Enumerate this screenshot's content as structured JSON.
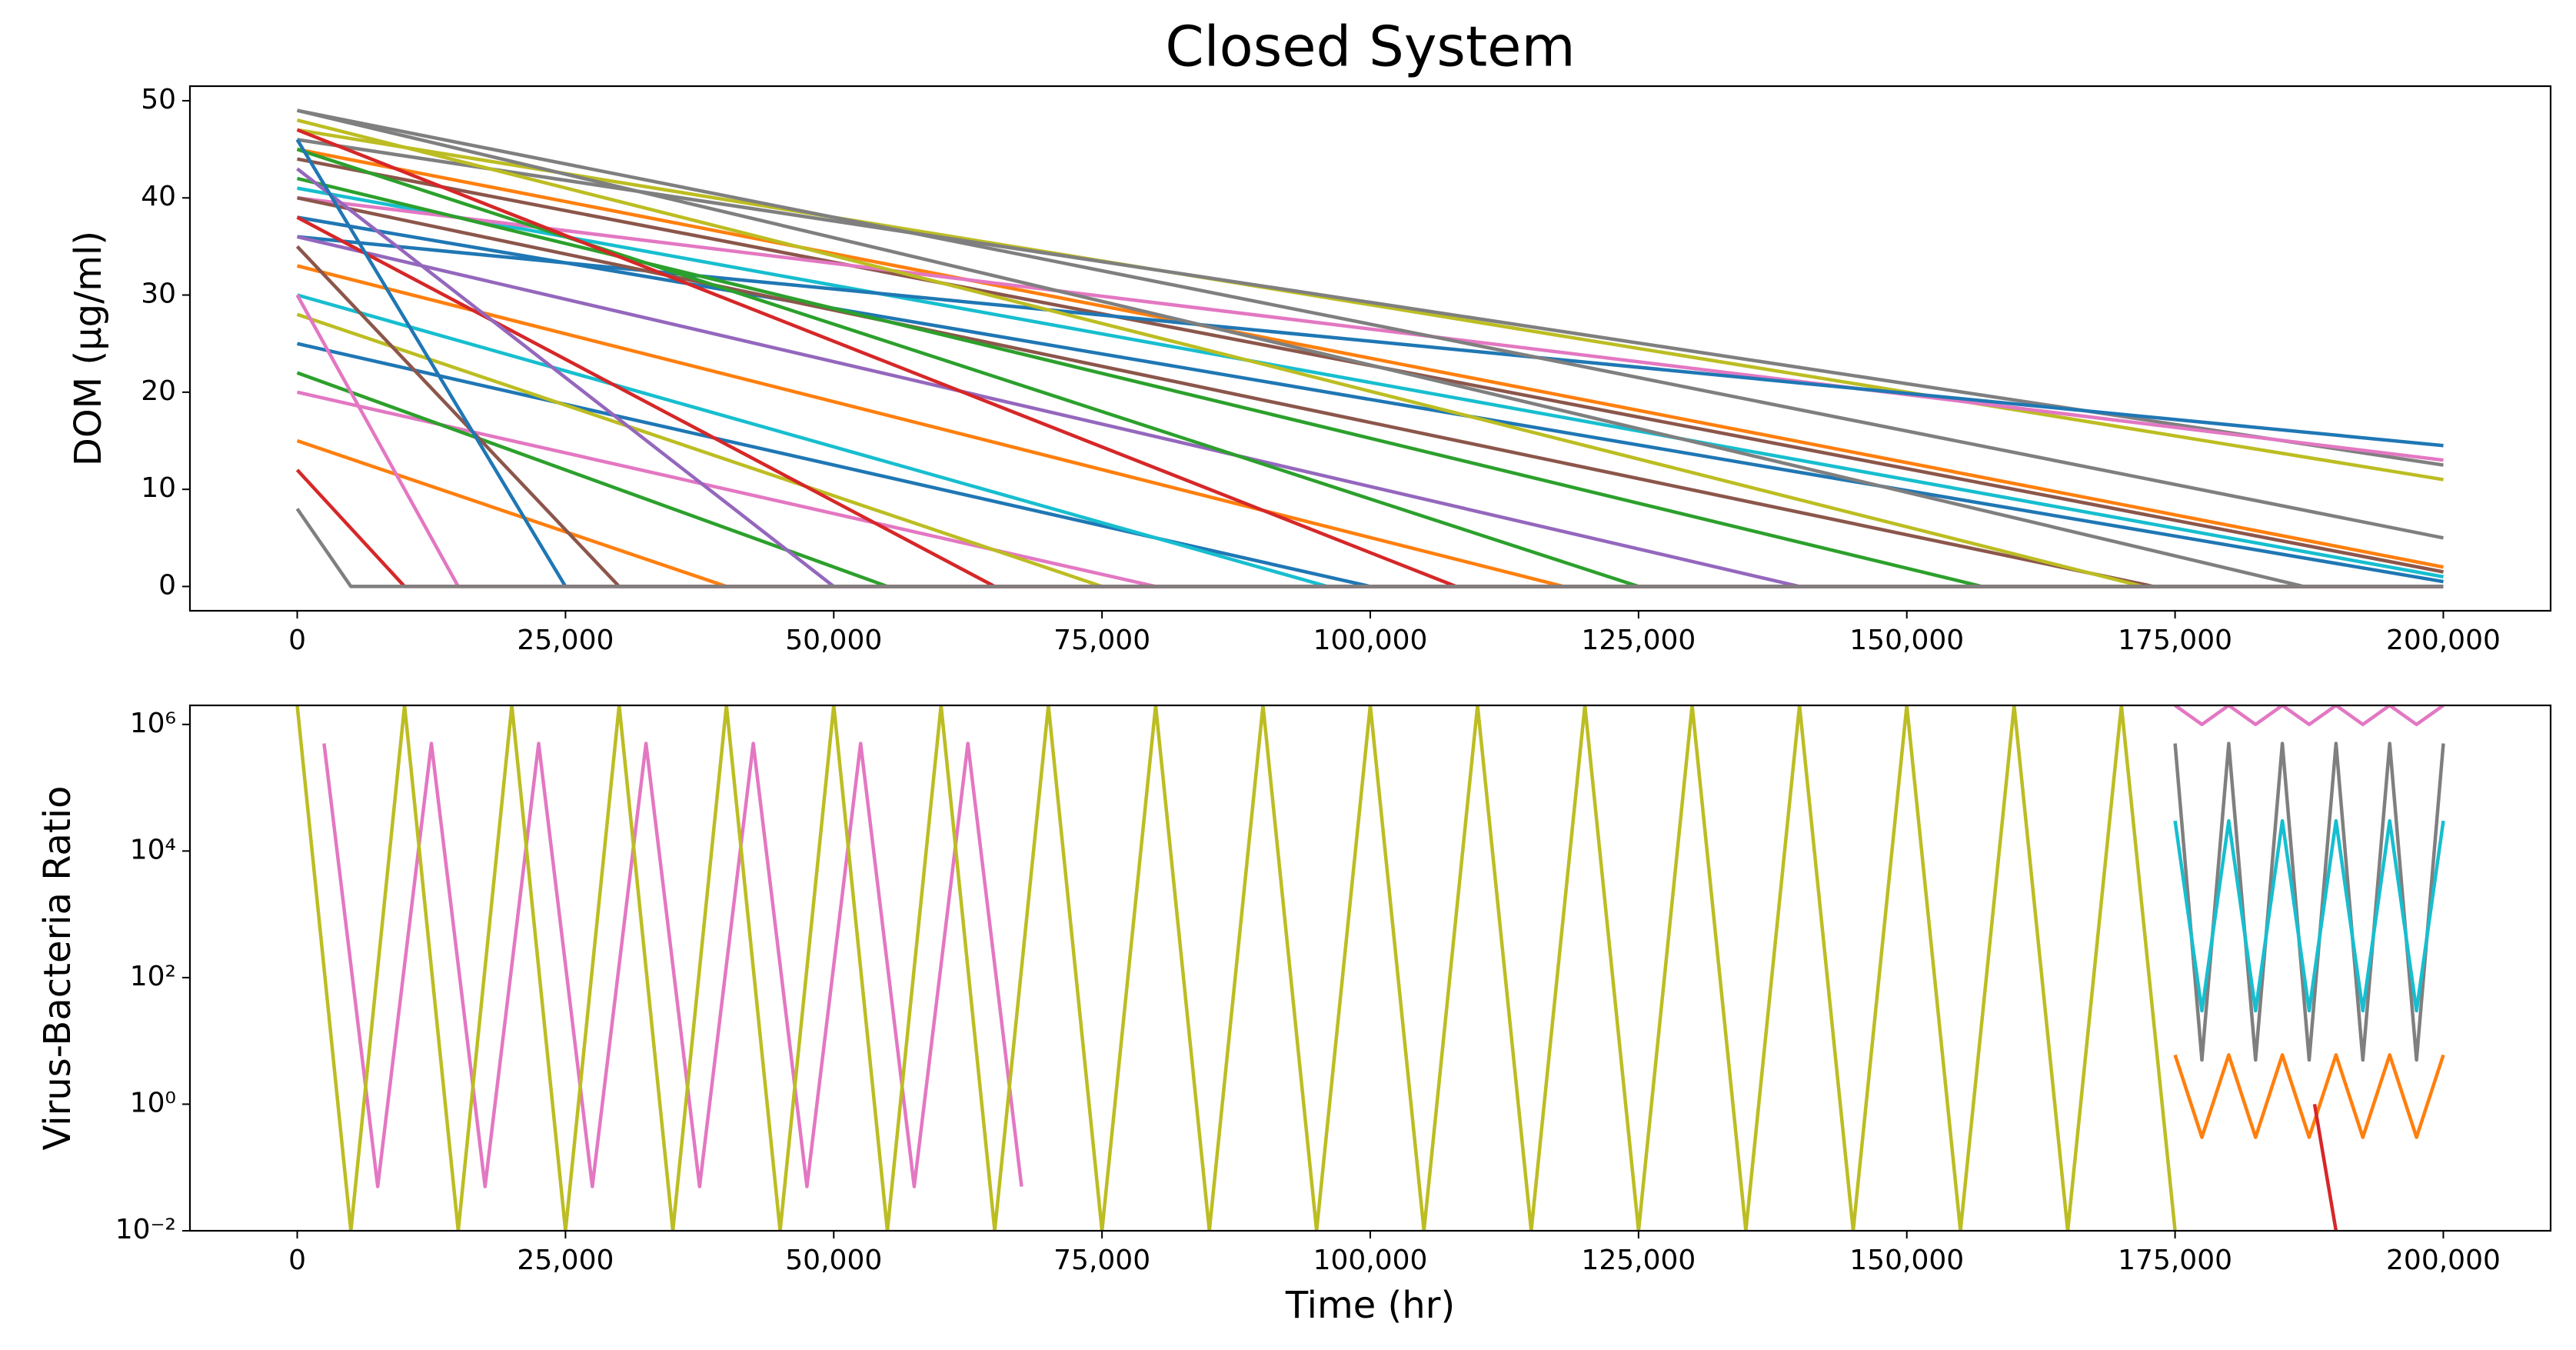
{
  "chart_data": [
    {
      "type": "line",
      "title": "Closed System",
      "ylabel": "DOM (μg/ml)",
      "xlim": [
        -10000,
        210000
      ],
      "ylim": [
        -2.5,
        51.5
      ],
      "xticks": [
        0,
        {
          "value": 25000,
          "label": "25,000"
        },
        {
          "value": 50000,
          "label": "50,000"
        },
        {
          "value": 75000,
          "label": "75,000"
        },
        {
          "value": 100000,
          "label": "100,000"
        },
        {
          "value": 125000,
          "label": "125,000"
        },
        {
          "value": 150000,
          "label": "150,000"
        },
        {
          "value": 175000,
          "label": "175,000"
        },
        {
          "value": 200000,
          "label": "200,000"
        }
      ],
      "yticks": [
        0,
        10,
        20,
        30,
        40,
        50
      ],
      "series": [
        {
          "color": "#1f77b4",
          "x": [
            0,
            200000
          ],
          "values": [
            38,
            0.5
          ]
        },
        {
          "color": "#17becf",
          "x": [
            0,
            200000
          ],
          "values": [
            41,
            1
          ]
        },
        {
          "color": "#8c564b",
          "x": [
            0,
            200000
          ],
          "values": [
            44,
            1.5
          ]
        },
        {
          "color": "#ff7f0e",
          "x": [
            0,
            200000
          ],
          "values": [
            45,
            2
          ]
        },
        {
          "color": "#bcbd22",
          "x": [
            0,
            200000
          ],
          "values": [
            47,
            11
          ]
        },
        {
          "color": "#7f7f7f",
          "x": [
            0,
            200000
          ],
          "values": [
            46,
            12.5
          ]
        },
        {
          "color": "#e377c2",
          "x": [
            0,
            200000
          ],
          "values": [
            40,
            13
          ]
        },
        {
          "color": "#1f77b4",
          "x": [
            0,
            200000
          ],
          "values": [
            36,
            14.5
          ]
        },
        {
          "color": "#7f7f7f",
          "x": [
            0,
            200000
          ],
          "values": [
            49,
            5
          ]
        },
        {
          "color": "#7f7f7f",
          "x": [
            0,
            187000,
            200000
          ],
          "values": [
            49,
            0,
            0
          ]
        },
        {
          "color": "#8c564b",
          "x": [
            0,
            173000,
            200000
          ],
          "values": [
            40,
            0,
            0
          ]
        },
        {
          "color": "#bcbd22",
          "x": [
            0,
            172000,
            200000
          ],
          "values": [
            48,
            0,
            0
          ]
        },
        {
          "color": "#2ca02c",
          "x": [
            0,
            157000,
            200000
          ],
          "values": [
            42,
            0,
            0
          ]
        },
        {
          "color": "#9467bd",
          "x": [
            0,
            140000,
            200000
          ],
          "values": [
            36,
            0,
            0
          ]
        },
        {
          "color": "#2ca02c",
          "x": [
            0,
            125000,
            200000
          ],
          "values": [
            45,
            0,
            0
          ]
        },
        {
          "color": "#ff7f0e",
          "x": [
            0,
            118000,
            200000
          ],
          "values": [
            33,
            0,
            0
          ]
        },
        {
          "color": "#d62728",
          "x": [
            0,
            108000,
            200000
          ],
          "values": [
            47,
            0,
            0
          ]
        },
        {
          "color": "#1f77b4",
          "x": [
            0,
            100000,
            200000
          ],
          "values": [
            25,
            0,
            0
          ]
        },
        {
          "color": "#17becf",
          "x": [
            0,
            96000,
            200000
          ],
          "values": [
            30,
            0,
            0
          ]
        },
        {
          "color": "#e377c2",
          "x": [
            0,
            80000,
            200000
          ],
          "values": [
            20,
            0,
            0
          ]
        },
        {
          "color": "#bcbd22",
          "x": [
            0,
            75000,
            200000
          ],
          "values": [
            28,
            0,
            0
          ]
        },
        {
          "color": "#d62728",
          "x": [
            0,
            65000,
            200000
          ],
          "values": [
            38,
            0,
            0
          ]
        },
        {
          "color": "#2ca02c",
          "x": [
            0,
            55000,
            200000
          ],
          "values": [
            22,
            0,
            0
          ]
        },
        {
          "color": "#9467bd",
          "x": [
            0,
            50000,
            200000
          ],
          "values": [
            43,
            0,
            0
          ]
        },
        {
          "color": "#ff7f0e",
          "x": [
            0,
            40000,
            200000
          ],
          "values": [
            15,
            0,
            0
          ]
        },
        {
          "color": "#8c564b",
          "x": [
            0,
            30000,
            200000
          ],
          "values": [
            35,
            0,
            0
          ]
        },
        {
          "color": "#1f77b4",
          "x": [
            0,
            25000,
            200000
          ],
          "values": [
            46,
            0,
            0
          ]
        },
        {
          "color": "#e377c2",
          "x": [
            0,
            15000,
            200000
          ],
          "values": [
            30,
            0,
            0
          ]
        },
        {
          "color": "#d62728",
          "x": [
            0,
            10000,
            200000
          ],
          "values": [
            12,
            0,
            0
          ]
        },
        {
          "color": "#7f7f7f",
          "x": [
            0,
            5000,
            200000
          ],
          "values": [
            8,
            0,
            0
          ]
        }
      ]
    },
    {
      "type": "line",
      "log_y": true,
      "ylabel": "Virus-Bacteria Ratio",
      "xlabel": "Time (hr)",
      "xlim": [
        -10000,
        210000
      ],
      "ylim": [
        0.01,
        2000000
      ],
      "xticks": [
        0,
        {
          "value": 25000,
          "label": "25,000"
        },
        {
          "value": 50000,
          "label": "50,000"
        },
        {
          "value": 75000,
          "label": "75,000"
        },
        {
          "value": 100000,
          "label": "100,000"
        },
        {
          "value": 125000,
          "label": "125,000"
        },
        {
          "value": 150000,
          "label": "150,000"
        },
        {
          "value": 175000,
          "label": "175,000"
        },
        {
          "value": 200000,
          "label": "200,000"
        }
      ],
      "yticks": [
        {
          "value": 0.01,
          "label": "10⁻²"
        },
        {
          "value": 1,
          "label": "10⁰"
        },
        {
          "value": 100,
          "label": "10²"
        },
        {
          "value": 10000,
          "label": "10⁴"
        },
        {
          "value": 1000000,
          "label": "10⁶"
        }
      ],
      "series": [
        {
          "color": "#7f7f7f",
          "x": [
            175000,
            177500,
            180000,
            182500,
            185000,
            187500,
            190000,
            192500,
            195000,
            197500,
            200000
          ],
          "values": [
            500000,
            5,
            500000,
            5,
            500000,
            5,
            500000,
            5,
            500000,
            5,
            500000
          ]
        },
        {
          "color": "#17becf",
          "x": [
            175000,
            177500,
            180000,
            182500,
            185000,
            187500,
            190000,
            192500,
            195000,
            197500,
            200000
          ],
          "values": [
            30000,
            30,
            30000,
            30,
            30000,
            30,
            30000,
            30,
            30000,
            30,
            30000
          ]
        },
        {
          "color": "#ff7f0e",
          "x": [
            175000,
            177500,
            180000,
            182500,
            185000,
            187500,
            190000,
            192500,
            195000,
            197500,
            200000
          ],
          "values": [
            6,
            0.3,
            6,
            0.3,
            6,
            0.3,
            6,
            0.3,
            6,
            0.3,
            6
          ]
        },
        {
          "color": "#e377c2",
          "x": [
            175000,
            177500,
            180000,
            182500,
            185000,
            187500,
            190000,
            192500,
            195000,
            197500,
            200000
          ],
          "values": [
            2000000,
            1000000,
            2000000,
            1000000,
            2000000,
            1000000,
            2000000,
            1000000,
            2000000,
            1000000,
            2000000
          ]
        },
        {
          "color": "#e377c2",
          "x": [
            2500,
            7500,
            12500,
            17500,
            22500,
            27500,
            32500,
            37500,
            42500,
            47500,
            52500,
            57500,
            62500,
            67500
          ],
          "values": [
            500000,
            0.05,
            500000,
            0.05,
            500000,
            0.05,
            500000,
            0.05,
            500000,
            0.05,
            500000,
            0.05,
            500000,
            0.05
          ]
        },
        {
          "color": "#bcbd22",
          "x": [
            0,
            5000,
            10000,
            15000,
            20000,
            25000,
            30000,
            35000,
            40000,
            45000,
            50000,
            55000,
            60000,
            65000,
            70000,
            75000,
            80000,
            85000,
            90000,
            95000,
            100000,
            105000,
            110000,
            115000,
            120000,
            125000,
            130000,
            135000,
            140000,
            145000,
            150000,
            155000,
            160000,
            165000,
            170000,
            175000
          ],
          "values": [
            2000000,
            0.01,
            2000000,
            0.01,
            2000000,
            0.01,
            2000000,
            0.01,
            2000000,
            0.01,
            2000000,
            0.01,
            2000000,
            0.01,
            2000000,
            0.01,
            2000000,
            0.01,
            2000000,
            0.01,
            2000000,
            0.01,
            2000000,
            0.01,
            2000000,
            0.01,
            2000000,
            0.01,
            2000000,
            0.01,
            2000000,
            0.01,
            2000000,
            0.01,
            2000000,
            0.01
          ]
        },
        {
          "color": "#d62728",
          "x": [
            188000,
            190000
          ],
          "values": [
            1,
            0.01
          ]
        }
      ]
    }
  ]
}
